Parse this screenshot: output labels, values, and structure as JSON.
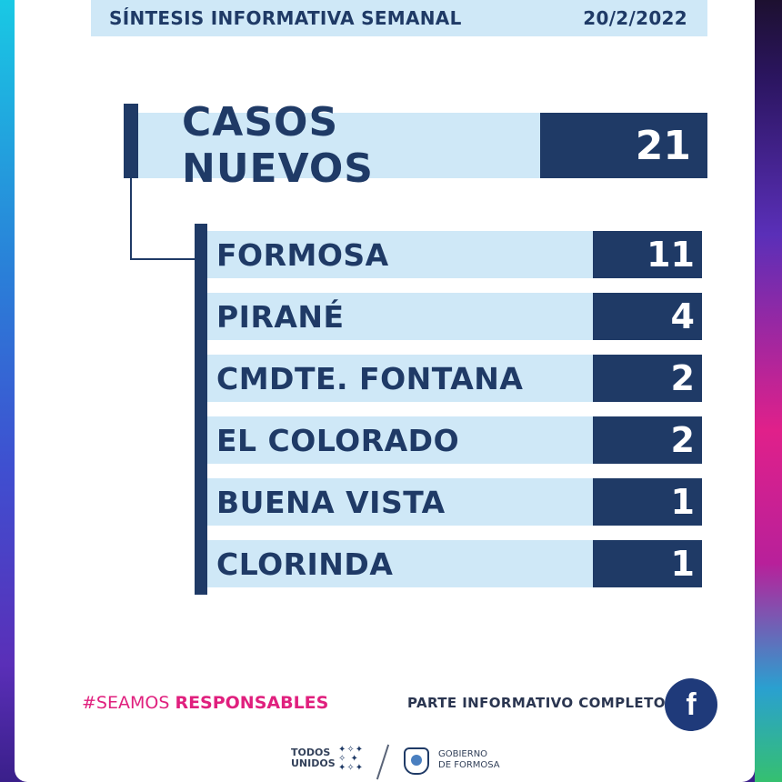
{
  "header": {
    "title": "SÍNTESIS INFORMATIVA SEMANAL",
    "date": "20/2/2022"
  },
  "summary": {
    "label": "CASOS NUEVOS",
    "value": "21"
  },
  "localities": [
    {
      "name": "FORMOSA",
      "value": "11"
    },
    {
      "name": "PIRANÉ",
      "value": "4"
    },
    {
      "name": "CMDTE. FONTANA",
      "value": "2"
    },
    {
      "name": "EL COLORADO",
      "value": "2"
    },
    {
      "name": "BUENA VISTA",
      "value": "1"
    },
    {
      "name": "CLORINDA",
      "value": "1"
    }
  ],
  "footer": {
    "hashtag_prefix": "#SEAMOS ",
    "hashtag_bold": "RESPONSABLES",
    "parte_label": "PARTE INFORMATIVO COMPLETO",
    "facebook_glyph": "f",
    "logo_todos_1": "TODOS",
    "logo_todos_2": "UNIDOS",
    "logo_gob_1": "GOBIERNO",
    "logo_gob_2": "DE FORMOSA"
  },
  "colors": {
    "navy": "#1f3a66",
    "light_blue": "#cfe8f7",
    "magenta": "#e0207e"
  }
}
